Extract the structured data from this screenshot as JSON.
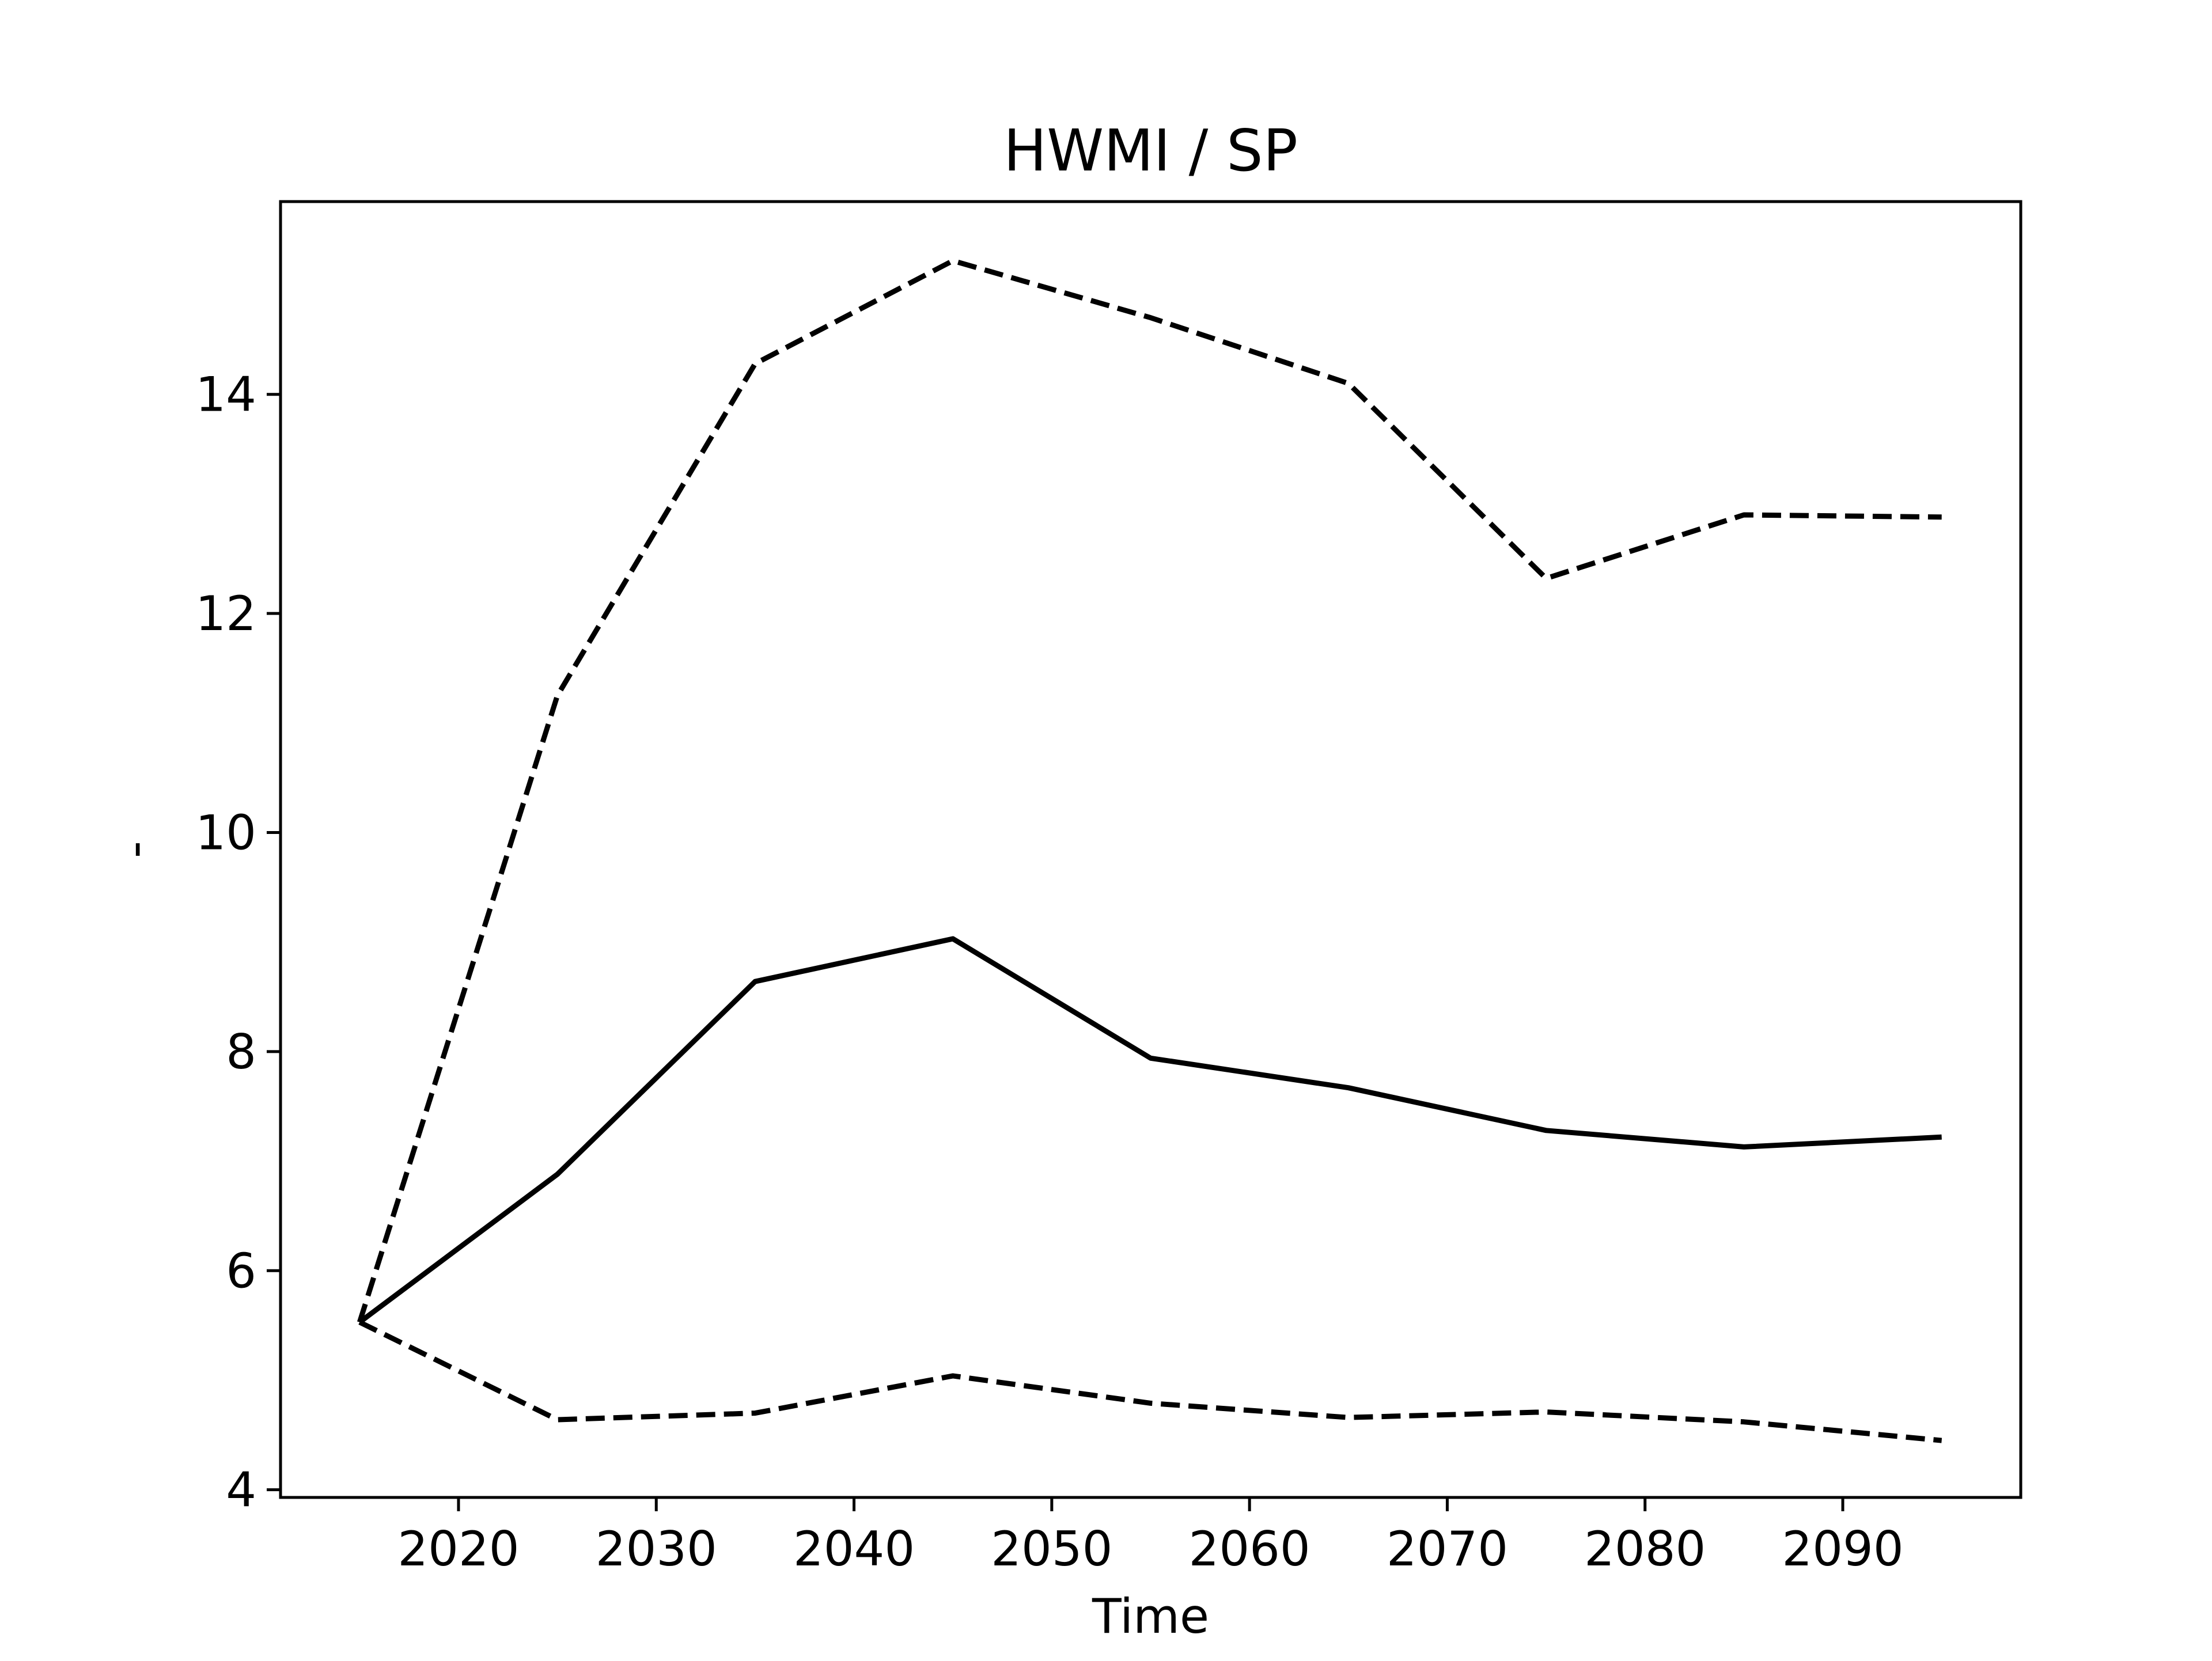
{
  "chart_data": {
    "type": "line",
    "title": "HWMI / SP",
    "xlabel": "Time",
    "ylabel": "-",
    "x": [
      2015,
      2025,
      2035,
      2045,
      2055,
      2065,
      2075,
      2085,
      2095
    ],
    "series": [
      {
        "style": "solid",
        "color": "#000000",
        "values": [
          5.53,
          6.88,
          8.64,
          9.03,
          7.94,
          7.67,
          7.28,
          7.13,
          7.22
        ]
      },
      {
        "style": "dashed",
        "color": "#000000",
        "values": [
          5.53,
          11.25,
          14.28,
          15.22,
          14.7,
          14.1,
          12.32,
          12.9,
          12.88
        ]
      },
      {
        "style": "dashed",
        "color": "#000000",
        "values": [
          5.53,
          4.64,
          4.7,
          5.04,
          4.79,
          4.66,
          4.71,
          4.62,
          4.45
        ]
      }
    ],
    "xlim": [
      2011,
      2099
    ],
    "ylim": [
      3.93,
      15.76
    ],
    "xticks": [
      2020,
      2030,
      2040,
      2050,
      2060,
      2070,
      2080,
      2090
    ],
    "yticks": [
      4,
      6,
      8,
      10,
      12,
      14
    ],
    "grid": false,
    "legend": "none"
  }
}
